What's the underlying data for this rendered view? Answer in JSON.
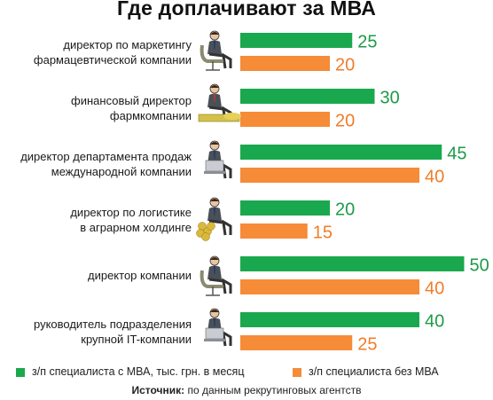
{
  "title": "Где доплачивают за МВА",
  "colors": {
    "mba": "#1aa84e",
    "no_mba": "#f68b38",
    "mba_text": "#1e9a48",
    "no_mba_text": "#ef7d2a"
  },
  "chart_data": {
    "type": "bar",
    "orientation": "horizontal",
    "categories": [
      [
        "директор по маркетингу",
        "фармацевтической компании"
      ],
      [
        "финансовый директор",
        "фармкомпании"
      ],
      [
        "директор департамента продаж",
        "международной компании"
      ],
      [
        "директор по логистике",
        "в аграрном холдинге"
      ],
      [
        "директор компании"
      ],
      [
        "руководитель подразделения",
        "крупной  IT-компании"
      ]
    ],
    "series": [
      {
        "name": "з/п специалиста с МВА, тыс. грн. в месяц",
        "values": [
          25,
          30,
          45,
          20,
          50,
          40
        ]
      },
      {
        "name": "з/п специалиста без МВА",
        "values": [
          20,
          20,
          40,
          15,
          40,
          25
        ]
      }
    ],
    "data_labels": true,
    "legend_position": "bottom"
  },
  "source": {
    "label": "Источник:",
    "text": " по данным рекрутинговых агентств"
  },
  "icons": [
    "manager-icon",
    "relaxed-cfo-icon",
    "laptop-worker-icon",
    "grain-sack-manager-icon",
    "armchair-director-icon",
    "it-manager-icon"
  ]
}
